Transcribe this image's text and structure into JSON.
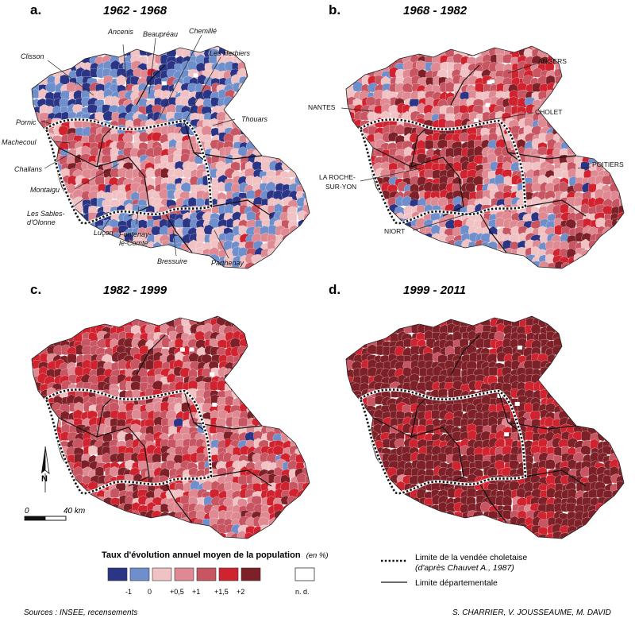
{
  "panels": [
    {
      "letter": "a.",
      "period": "1962 - 1968",
      "cities": [
        "Ancenis",
        "Beaupréau",
        "Chemillé",
        "Les Herbiers",
        "Clisson",
        "Thouars",
        "Pornic",
        "Machecoul",
        "Challans",
        "Montaigu",
        "Les Sables-",
        "d'Olonne",
        "Luçon",
        "Fontenay-",
        "le-Comte",
        "Bressuire",
        "Parthenay"
      ],
      "bias": [
        -1,
        -1,
        -1,
        0,
        1,
        1,
        0,
        -1,
        -1,
        -1,
        -1,
        0
      ]
    },
    {
      "letter": "b.",
      "period": "1968 - 1982",
      "cities": [
        "ANGERS",
        "NANTES",
        "CHOLET",
        "LA ROCHE-",
        "SUR-YON",
        "POITIERS",
        "NIORT"
      ],
      "bias": [
        0,
        0,
        1,
        1,
        1,
        2,
        0,
        0,
        -1,
        -1,
        -1,
        1
      ]
    },
    {
      "letter": "c.",
      "period": "1982 - 1999",
      "cities": [],
      "bias": [
        1,
        1,
        1,
        2,
        1,
        1,
        0,
        0,
        1,
        1,
        0,
        1
      ]
    },
    {
      "letter": "d.",
      "period": "1999 - 2011",
      "cities": [],
      "bias": [
        2,
        2,
        2,
        2,
        2,
        2,
        1,
        1,
        1,
        2,
        1,
        2
      ]
    }
  ],
  "north_label": "N",
  "scale": {
    "start": "0",
    "end": "40 km"
  },
  "legend": {
    "title": "Taux d'évolution annuel moyen de la population",
    "unit": "(en %)",
    "classes": [
      {
        "color": "#2b3585",
        "label": ""
      },
      {
        "color": "#6f8fcc",
        "label": "-1"
      },
      {
        "color": "#f1c2c4",
        "label": "0"
      },
      {
        "color": "#df8a92",
        "label": "+0,5"
      },
      {
        "color": "#c85562",
        "label": "+1"
      },
      {
        "color": "#d1232f",
        "label": "+1,5"
      },
      {
        "color": "#7e2027",
        "label": "+2"
      }
    ],
    "nd_label": "n. d.",
    "line1_label": "Limite de la vendée choletaise",
    "line1_sub": "(d'après Chauvet A., 1987)",
    "line2_label": "Limite départementale"
  },
  "footer": {
    "sources": "Sources : INSEE, recensements",
    "authors": "S. CHARRIER, V. JOUSSEAUME, M. DAVID"
  }
}
